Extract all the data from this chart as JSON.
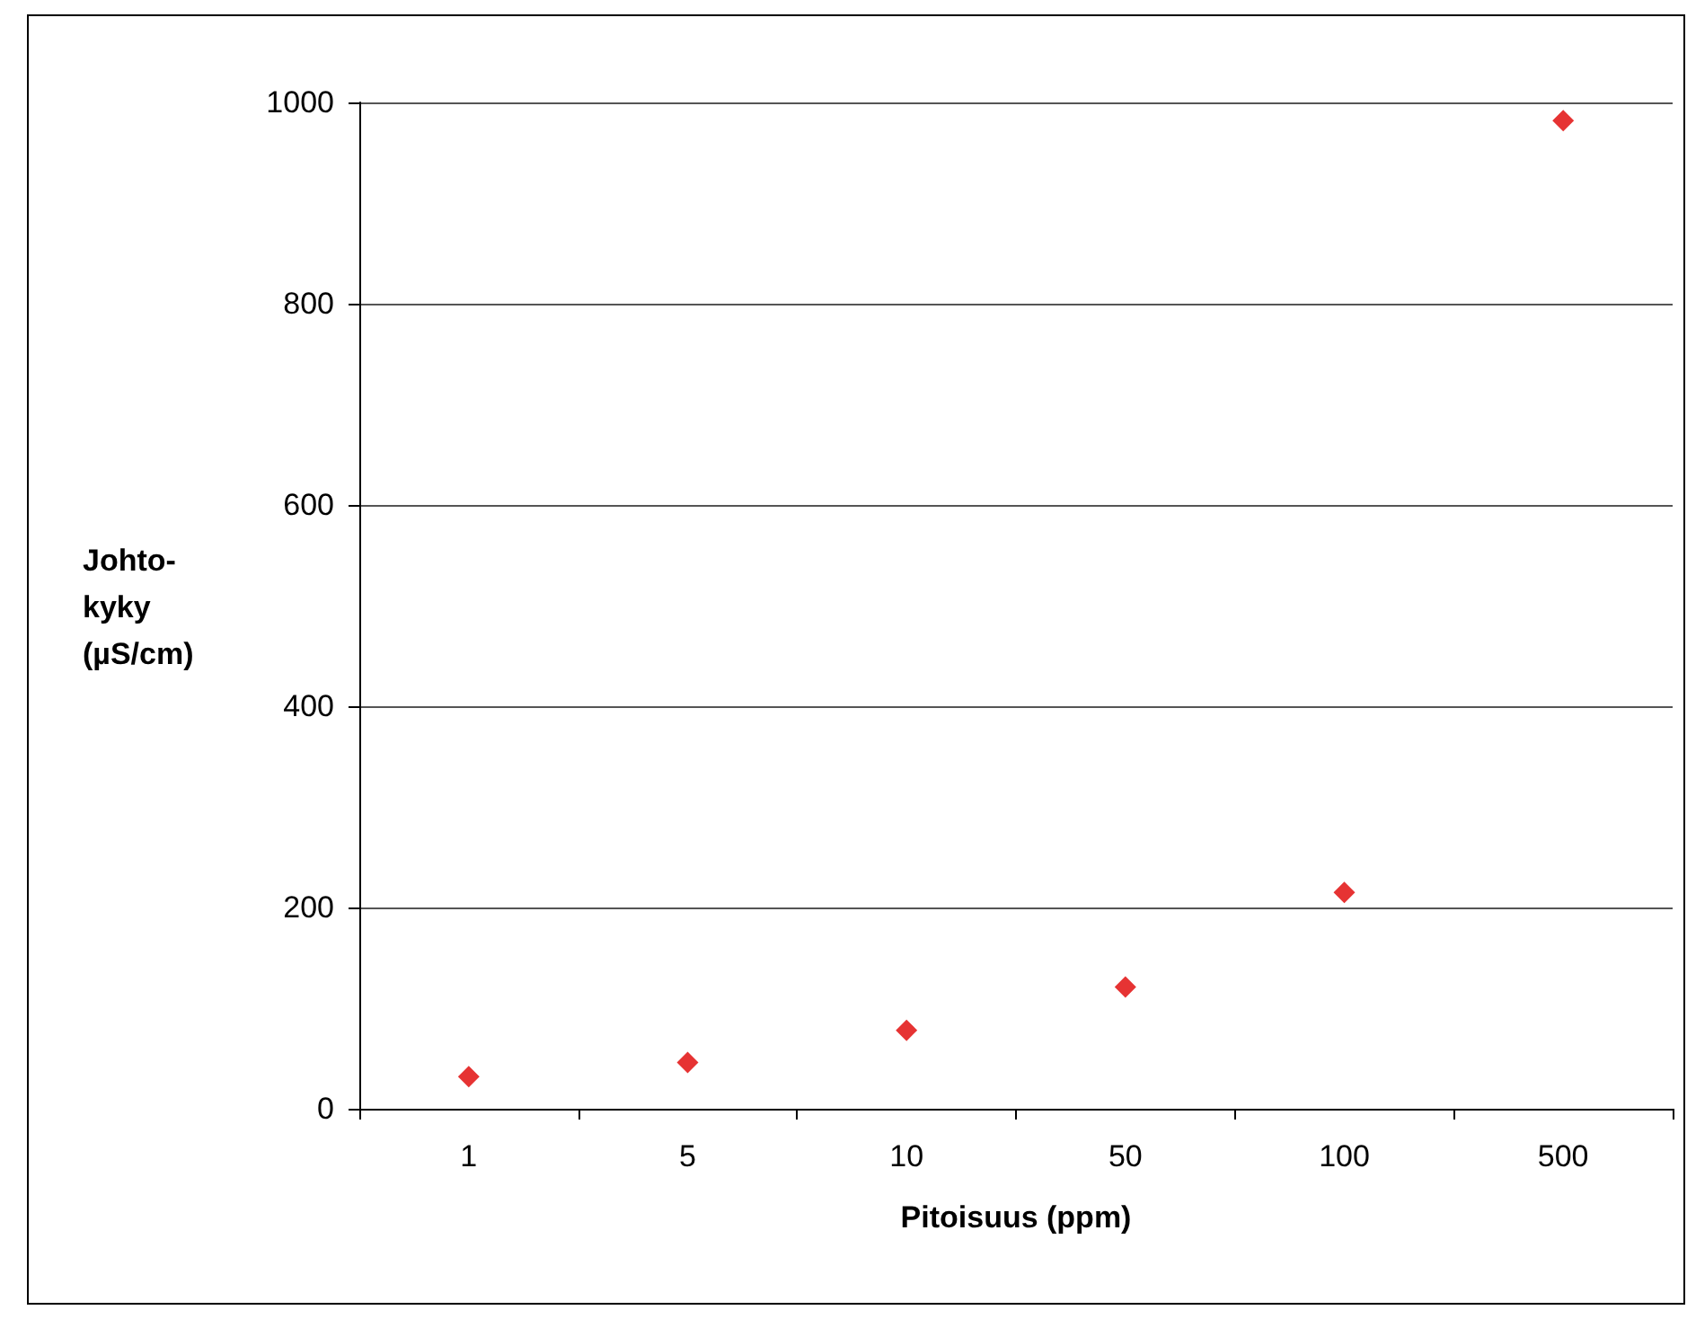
{
  "chart_data": {
    "type": "scatter",
    "xlabel": "Pitoisuus (ppm)",
    "ylabel": "Johto-\nkyky\n(µS/cm)",
    "categories": [
      "1",
      "5",
      "10",
      "50",
      "100",
      "500"
    ],
    "series": [
      {
        "color": "#e00000",
        "values": [
          32,
          46,
          78,
          121,
          215,
          982
        ]
      }
    ],
    "ylim": [
      0,
      1000
    ],
    "yticks": [
      0,
      200,
      400,
      600,
      800,
      1000
    ],
    "grid": "y",
    "marker": "diamond"
  }
}
